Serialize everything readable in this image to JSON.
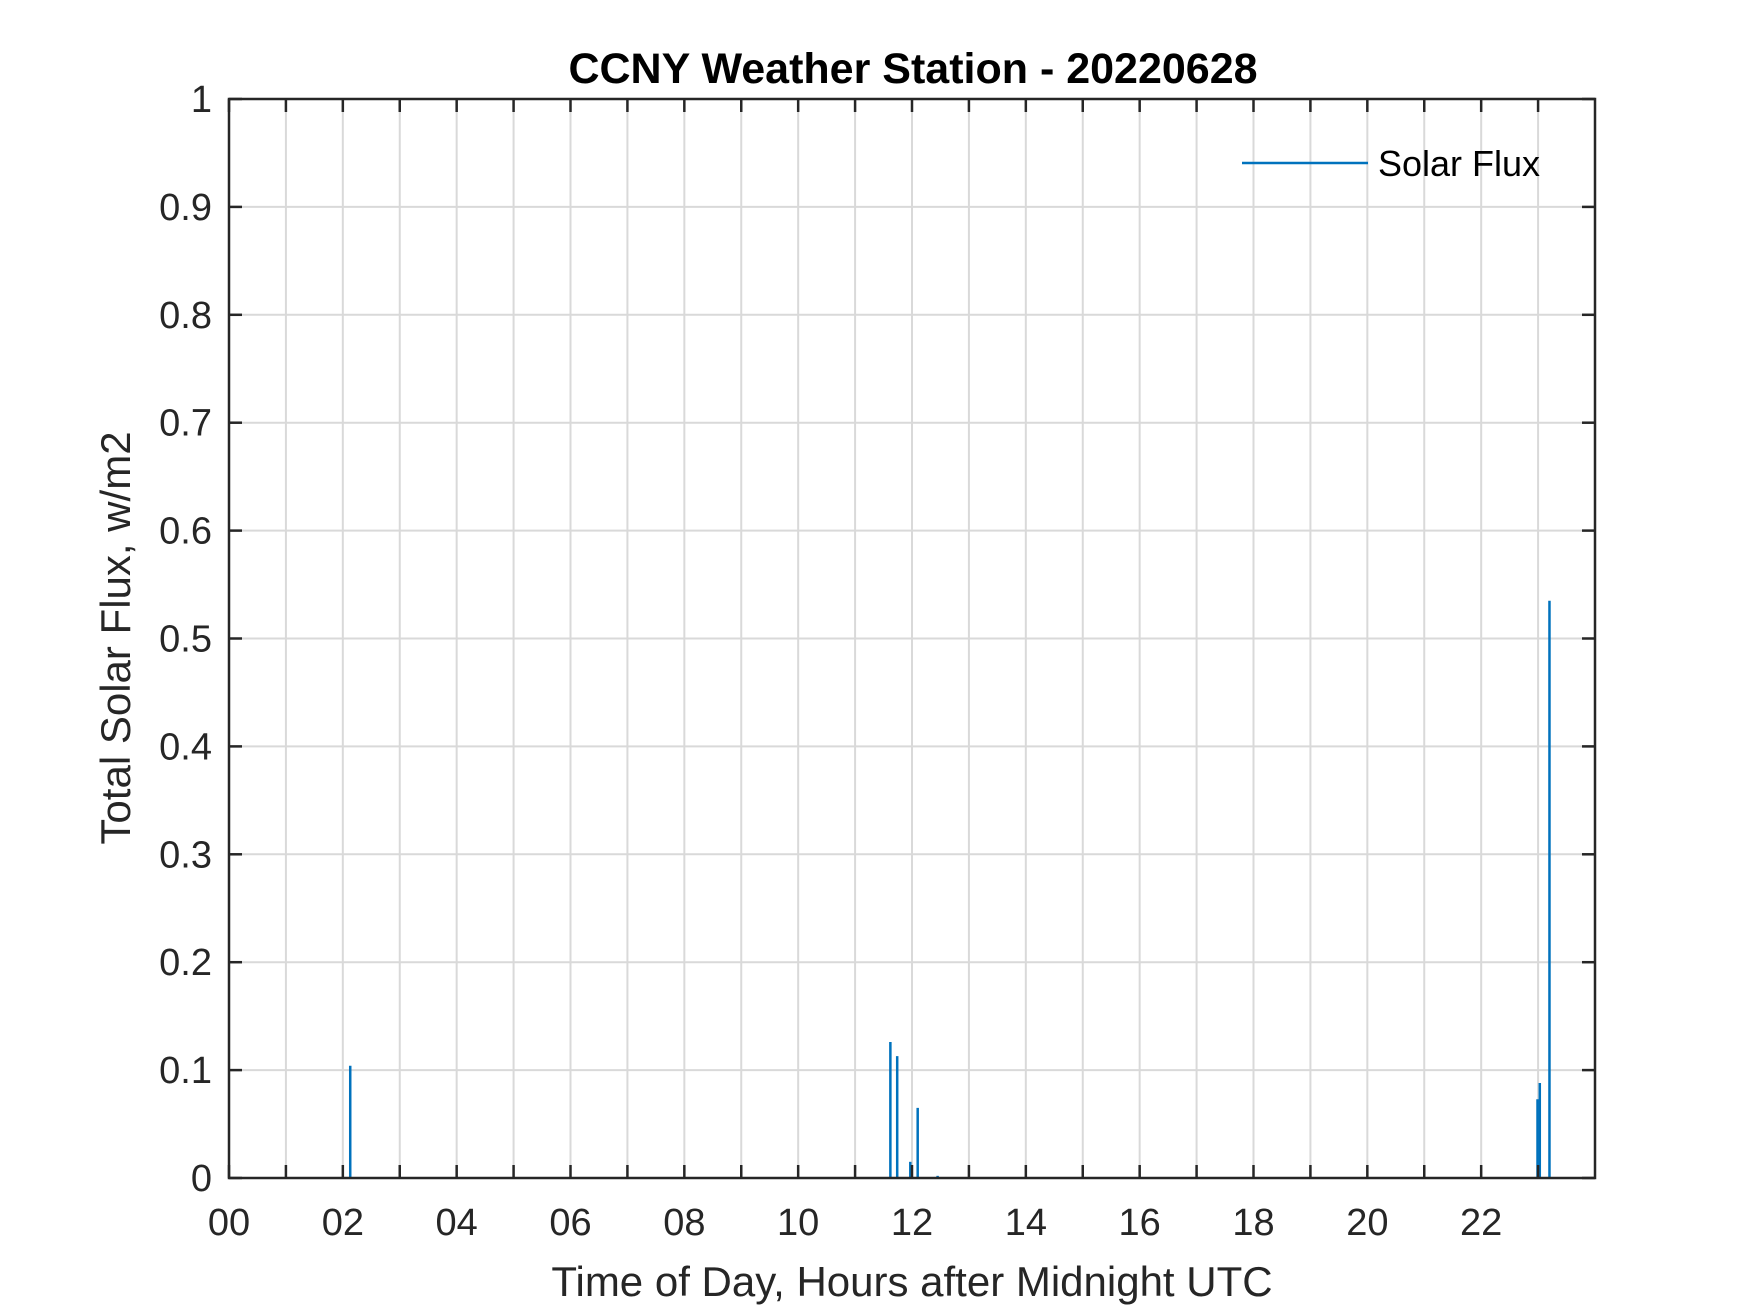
{
  "chart_data": {
    "type": "line",
    "title": "CCNY Weather Station - 20220628",
    "xlabel": "Time of Day, Hours after Midnight UTC",
    "ylabel": "Total Solar Flux, w/m2",
    "xlim": [
      0,
      24
    ],
    "ylim": [
      0,
      1
    ],
    "x_ticks": [
      0,
      2,
      4,
      6,
      8,
      10,
      12,
      14,
      16,
      18,
      20,
      22
    ],
    "x_tick_labels": [
      "00",
      "02",
      "04",
      "06",
      "08",
      "10",
      "12",
      "14",
      "16",
      "18",
      "20",
      "22"
    ],
    "x_minor_ticks": [
      1,
      3,
      5,
      7,
      9,
      11,
      13,
      15,
      17,
      19,
      21,
      23
    ],
    "y_ticks": [
      0,
      0.1,
      0.2,
      0.3,
      0.4,
      0.5,
      0.6,
      0.7,
      0.8,
      0.9,
      1
    ],
    "y_tick_labels": [
      "0",
      "0.1",
      "0.2",
      "0.3",
      "0.4",
      "0.5",
      "0.6",
      "0.7",
      "0.8",
      "0.9",
      "1"
    ],
    "grid": true,
    "legend_position": "top-right",
    "series": [
      {
        "name": "Solar Flux",
        "color": "#0072BD",
        "spikes": [
          {
            "x": 2.13,
            "y": 0.104
          },
          {
            "x": 11.62,
            "y": 0.126
          },
          {
            "x": 11.74,
            "y": 0.113
          },
          {
            "x": 11.97,
            "y": 0.015
          },
          {
            "x": 12.1,
            "y": 0.065
          },
          {
            "x": 12.45,
            "y": 0.002
          },
          {
            "x": 22.99,
            "y": 0.073
          },
          {
            "x": 23.03,
            "y": 0.088
          },
          {
            "x": 23.2,
            "y": 0.535
          }
        ]
      }
    ]
  }
}
